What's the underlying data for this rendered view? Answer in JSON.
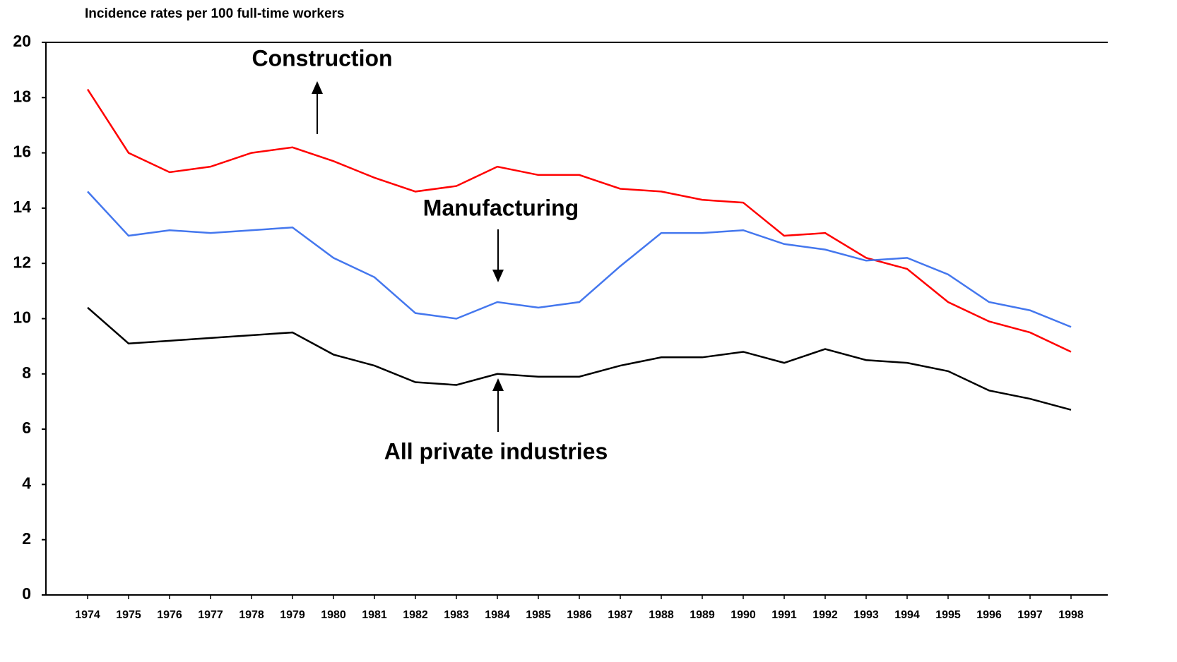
{
  "chart_data": {
    "type": "line",
    "y_axis_label": "Incidence rates per 100 full-time workers",
    "categories": [
      "1974",
      "1975",
      "1976",
      "1977",
      "1978",
      "1979",
      "1980",
      "1981",
      "1982",
      "1983",
      "1984",
      "1985",
      "1986",
      "1987",
      "1988",
      "1989",
      "1990",
      "1991",
      "1992",
      "1993",
      "1994",
      "1995",
      "1996",
      "1997",
      "1998"
    ],
    "series": [
      {
        "name": "Construction",
        "color": "#ff0000",
        "values": [
          18.3,
          16.0,
          15.3,
          15.5,
          16.0,
          16.2,
          15.7,
          15.1,
          14.6,
          14.8,
          15.5,
          15.2,
          15.2,
          14.7,
          14.6,
          14.3,
          14.2,
          13.0,
          13.1,
          12.2,
          11.8,
          10.6,
          9.9,
          9.5,
          8.8
        ]
      },
      {
        "name": "Manufacturing",
        "color": "#4477ee",
        "values": [
          14.6,
          13.0,
          13.2,
          13.1,
          13.2,
          13.3,
          12.2,
          11.5,
          10.2,
          10.0,
          10.6,
          10.4,
          10.6,
          11.9,
          13.1,
          13.1,
          13.2,
          12.7,
          12.5,
          12.1,
          12.2,
          11.6,
          10.6,
          10.3,
          9.7
        ]
      },
      {
        "name": "All private industries",
        "color": "#000000",
        "values": [
          10.4,
          9.1,
          9.2,
          9.3,
          9.4,
          9.5,
          8.7,
          8.3,
          7.7,
          7.6,
          8.0,
          7.9,
          7.9,
          8.3,
          8.6,
          8.6,
          8.8,
          8.4,
          8.9,
          8.5,
          8.4,
          8.1,
          7.4,
          7.1,
          6.7
        ]
      }
    ],
    "ylim": [
      0,
      20
    ],
    "yticks": [
      0,
      2,
      4,
      6,
      8,
      10,
      12,
      14,
      16,
      18,
      20
    ]
  }
}
